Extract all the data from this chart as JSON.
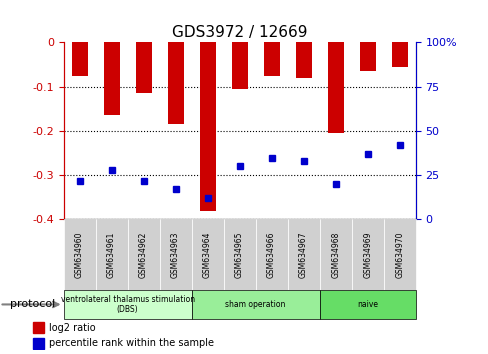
{
  "title": "GDS3972 / 12669",
  "samples": [
    "GSM634960",
    "GSM634961",
    "GSM634962",
    "GSM634963",
    "GSM634964",
    "GSM634965",
    "GSM634966",
    "GSM634967",
    "GSM634968",
    "GSM634969",
    "GSM634970"
  ],
  "log2_ratio": [
    -0.075,
    -0.165,
    -0.115,
    -0.185,
    -0.38,
    -0.105,
    -0.075,
    -0.08,
    -0.205,
    -0.065,
    -0.055
  ],
  "percentile_rank": [
    22,
    28,
    22,
    17,
    12,
    30,
    35,
    33,
    20,
    37,
    42
  ],
  "ylim_left": [
    -0.4,
    0
  ],
  "ylim_right": [
    0,
    100
  ],
  "bar_color": "#cc0000",
  "dot_color": "#0000cc",
  "protocol_groups": [
    {
      "label": "ventrolateral thalamus stimulation\n(DBS)",
      "start": 0,
      "end": 3,
      "color": "#ccffcc"
    },
    {
      "label": "sham operation",
      "start": 4,
      "end": 7,
      "color": "#99ee99"
    },
    {
      "label": "naive",
      "start": 8,
      "end": 10,
      "color": "#66dd66"
    }
  ],
  "protocol_label": "protocol",
  "legend_items": [
    {
      "color": "#cc0000",
      "label": "log2 ratio"
    },
    {
      "color": "#0000cc",
      "label": "percentile rank within the sample"
    }
  ],
  "grid_yticks_left": [
    -0.4,
    -0.3,
    -0.2,
    -0.1,
    0
  ],
  "grid_yticks_right": [
    0,
    25,
    50,
    75,
    100
  ],
  "background_color": "#ffffff"
}
